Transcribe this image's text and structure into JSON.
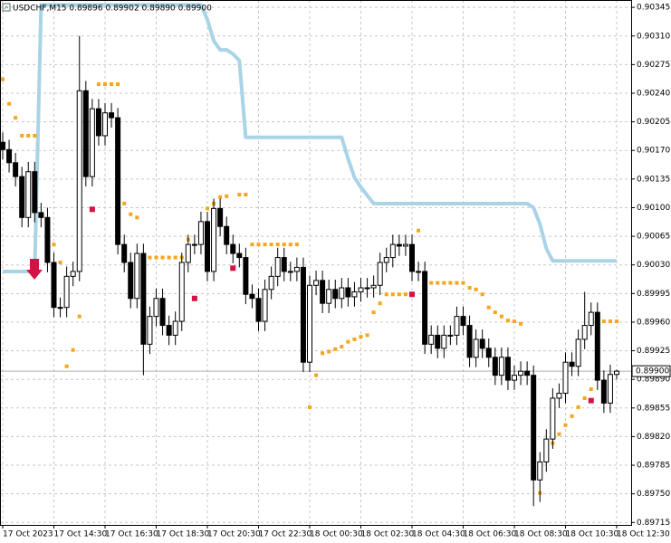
{
  "chart_data": {
    "type": "candlestick",
    "title": "USDCHF,M15  0.89896 0.89902 0.89890 0.89900",
    "categories": [
      "17 Oct 2023",
      null,
      null,
      null,
      null,
      null,
      null,
      null,
      "17 Oct 14:30",
      null,
      null,
      null,
      null,
      null,
      null,
      null,
      "17 Oct 16:30",
      null,
      null,
      null,
      null,
      null,
      null,
      null,
      "17 Oct 18:30",
      null,
      null,
      null,
      null,
      null,
      null,
      null,
      "17 Oct 20:30",
      null,
      null,
      null,
      null,
      null,
      null,
      null,
      "17 Oct 22:30",
      null,
      null,
      null,
      null,
      null,
      null,
      null,
      "18 Oct 00:30",
      null,
      null,
      null,
      null,
      null,
      null,
      null,
      "18 Oct 02:30",
      null,
      null,
      null,
      null,
      null,
      null,
      null,
      "18 Oct 04:30",
      null,
      null,
      null,
      null,
      null,
      null,
      null,
      "18 Oct 06:30",
      null,
      null,
      null,
      null,
      null,
      null,
      null,
      "18 Oct 08:30",
      null,
      null,
      null,
      null,
      null,
      null,
      null,
      "18 Oct 10:30",
      null,
      null,
      null,
      null,
      null,
      null,
      null,
      "18 Oct 12:30"
    ],
    "open": [
      0.9018,
      0.90171,
      0.90155,
      0.90138,
      0.90088,
      0.90144,
      0.90094,
      0.90088,
      0.90033,
      0.89978,
      0.89978,
      0.90016,
      0.90022,
      0.90243,
      0.90138,
      0.90221,
      0.90188,
      0.90216,
      0.9021,
      0.90055,
      0.90033,
      0.89989,
      0.90044,
      0.89933,
      0.89967,
      0.89989,
      0.89956,
      0.89944,
      0.89961,
      0.90033,
      0.90055,
      0.90055,
      0.90083,
      0.90022,
      0.90099,
      0.90077,
      0.90055,
      0.90044,
      0.90039,
      0.89994,
      0.89989,
      0.89961,
      0.9,
      0.90016,
      0.90039,
      0.90022,
      0.90022,
      0.90027,
      0.89911,
      0.90005,
      0.90011,
      0.89983,
      0.9,
      0.89989,
      0.90002,
      0.89991,
      0.89997,
      0.90002,
      0.90002,
      0.90005,
      0.90033,
      0.90039,
      0.90055,
      0.90053,
      0.90055,
      0.90022,
      0.90022,
      0.89933,
      0.89944,
      0.89928,
      0.89944,
      0.89944,
      0.89967,
      0.89956,
      0.89917,
      0.89939,
      0.89928,
      0.89917,
      0.89895,
      0.89917,
      0.89889,
      0.89895,
      0.899,
      0.89895,
      0.89767,
      0.89789,
      0.89817,
      0.89867,
      0.89873,
      0.89911,
      0.89906,
      0.89939,
      0.89956,
      0.89972,
      0.89889,
      0.89861,
      0.89896
    ],
    "high": [
      0.90192,
      0.90183,
      0.90167,
      0.9015,
      0.90156,
      0.90156,
      0.90106,
      0.901,
      0.90045,
      0.8999,
      0.90028,
      0.90034,
      0.9031,
      0.90255,
      0.90233,
      0.90233,
      0.90228,
      0.90228,
      0.90222,
      0.90067,
      0.90045,
      0.90056,
      0.90056,
      0.89979,
      0.90001,
      0.90001,
      0.89968,
      0.89973,
      0.90045,
      0.90067,
      0.90067,
      0.90095,
      0.90095,
      0.90111,
      0.90111,
      0.90089,
      0.90067,
      0.90056,
      0.90051,
      0.90006,
      0.90001,
      0.90012,
      0.90028,
      0.90051,
      0.90051,
      0.90034,
      0.90039,
      0.90039,
      0.90017,
      0.90023,
      0.90023,
      0.90012,
      0.90012,
      0.90014,
      0.90014,
      0.90009,
      0.90014,
      0.90014,
      0.90017,
      0.90045,
      0.90051,
      0.90067,
      0.90067,
      0.90067,
      0.90067,
      0.90034,
      0.90034,
      0.89956,
      0.89956,
      0.89956,
      0.89956,
      0.89979,
      0.89979,
      0.89968,
      0.89951,
      0.89951,
      0.8994,
      0.89929,
      0.89929,
      0.89929,
      0.89907,
      0.89912,
      0.89912,
      0.89907,
      0.89801,
      0.89829,
      0.89879,
      0.89885,
      0.89923,
      0.89923,
      0.89951,
      0.89997,
      0.89984,
      0.89984,
      0.89901,
      0.89908,
      0.89902
    ],
    "low": [
      0.90159,
      0.90143,
      0.90126,
      0.90076,
      0.90076,
      0.90082,
      0.90076,
      0.90021,
      0.89966,
      0.89966,
      0.89966,
      0.90004,
      0.9001,
      0.90126,
      0.90126,
      0.90176,
      0.90176,
      0.90198,
      0.90043,
      0.90021,
      0.89977,
      0.89977,
      0.89895,
      0.89921,
      0.89955,
      0.89944,
      0.89932,
      0.89932,
      0.89949,
      0.90021,
      0.90043,
      0.90043,
      0.9001,
      0.9001,
      0.90065,
      0.90043,
      0.90032,
      0.90027,
      0.89982,
      0.89977,
      0.89949,
      0.89949,
      0.89988,
      0.90004,
      0.9001,
      0.9001,
      0.9001,
      0.89899,
      0.89899,
      0.89993,
      0.89971,
      0.89971,
      0.89977,
      0.89977,
      0.89979,
      0.89979,
      0.89985,
      0.8999,
      0.8999,
      0.89993,
      0.90021,
      0.90027,
      0.90041,
      0.90041,
      0.9001,
      0.9001,
      0.89921,
      0.89921,
      0.89916,
      0.89916,
      0.89932,
      0.89932,
      0.89944,
      0.89905,
      0.89905,
      0.89916,
      0.89905,
      0.89883,
      0.89883,
      0.89877,
      0.89877,
      0.89883,
      0.89883,
      0.89735,
      0.8974,
      0.89777,
      0.89805,
      0.89855,
      0.89861,
      0.89894,
      0.89894,
      0.89927,
      0.89944,
      0.89877,
      0.89849,
      0.89849,
      0.8989
    ],
    "close": [
      0.90171,
      0.90155,
      0.90138,
      0.90088,
      0.90144,
      0.90094,
      0.90088,
      0.90033,
      0.89978,
      0.89978,
      0.90016,
      0.90022,
      0.90243,
      0.90138,
      0.90221,
      0.90188,
      0.90216,
      0.9021,
      0.90055,
      0.90033,
      0.89989,
      0.90044,
      0.89933,
      0.89967,
      0.89989,
      0.89956,
      0.89944,
      0.89961,
      0.90033,
      0.90055,
      0.90055,
      0.90083,
      0.90022,
      0.90099,
      0.90077,
      0.90055,
      0.90044,
      0.90039,
      0.89994,
      0.89989,
      0.89961,
      0.9,
      0.90016,
      0.90039,
      0.90022,
      0.90022,
      0.90027,
      0.89911,
      0.90005,
      0.90011,
      0.89983,
      0.9,
      0.89989,
      0.90002,
      0.89991,
      0.89997,
      0.90002,
      0.90002,
      0.90005,
      0.90033,
      0.90039,
      0.90055,
      0.90053,
      0.90055,
      0.90022,
      0.90022,
      0.89933,
      0.89944,
      0.89928,
      0.89944,
      0.89944,
      0.89967,
      0.89956,
      0.89917,
      0.89939,
      0.89928,
      0.89917,
      0.89895,
      0.89917,
      0.89889,
      0.89895,
      0.899,
      0.89895,
      0.89767,
      0.89789,
      0.89817,
      0.89867,
      0.89873,
      0.89911,
      0.89906,
      0.89939,
      0.89956,
      0.89972,
      0.89889,
      0.89861,
      0.89896,
      0.899
    ],
    "line_values": [
      0.90022,
      0.90022,
      0.90022,
      0.90022,
      0.90022,
      0.90022,
      0.90348,
      0.90348,
      0.90348,
      0.90348,
      0.90348,
      0.90348,
      0.90348,
      0.90348,
      0.90348,
      0.90348,
      0.90348,
      0.90348,
      0.90348,
      0.90348,
      0.90348,
      0.90348,
      0.90348,
      0.90348,
      0.90348,
      0.90348,
      0.90348,
      0.90348,
      0.90348,
      0.90348,
      0.90348,
      0.90348,
      0.9033,
      0.90304,
      0.90293,
      0.90293,
      0.90288,
      0.9028,
      0.90186,
      0.90186,
      0.90186,
      0.90186,
      0.90186,
      0.90186,
      0.90186,
      0.90186,
      0.90186,
      0.90186,
      0.90186,
      0.90186,
      0.90186,
      0.90186,
      0.90186,
      0.90186,
      0.9016,
      0.90137,
      0.90125,
      0.90115,
      0.90105,
      0.90105,
      0.90105,
      0.90105,
      0.90105,
      0.90105,
      0.90105,
      0.90105,
      0.90105,
      0.90105,
      0.90105,
      0.90105,
      0.90105,
      0.90105,
      0.90105,
      0.90105,
      0.90105,
      0.90105,
      0.90105,
      0.90105,
      0.90105,
      0.90105,
      0.90105,
      0.90105,
      0.90105,
      0.901,
      0.9008,
      0.9005,
      0.90035,
      0.90035,
      0.90035,
      0.90035,
      0.90035,
      0.90035,
      0.90035,
      0.90035,
      0.90035,
      0.90035,
      0.90035
    ],
    "line_color": "#a8d4e6",
    "sar_values": [
      0.90257,
      0.90227,
      0.9021,
      0.90188,
      0.90188,
      0.90188,
      null,
      0.90072,
      0.90055,
      0.90033,
      0.89906,
      0.89926,
      0.89967,
      null,
      null,
      0.90251,
      0.90251,
      0.90251,
      0.90251,
      0.90105,
      0.90092,
      0.90088,
      0.90039,
      0.90039,
      0.90039,
      0.90039,
      0.90039,
      0.90039,
      0.90039,
      0.90061,
      null,
      0.90077,
      0.90099,
      0.90105,
      0.90113,
      0.90114,
      null,
      0.90116,
      0.90116,
      0.90055,
      0.90055,
      0.90055,
      0.90055,
      0.90055,
      0.90055,
      0.90055,
      0.90055,
      null,
      0.89856,
      0.89895,
      0.89922,
      0.89924,
      0.89927,
      0.8993,
      0.89936,
      0.89939,
      0.89942,
      0.89944,
      0.89972,
      0.89983,
      0.89994,
      0.89994,
      0.89994,
      0.89994,
      null,
      0.90072,
      0.90008,
      0.90008,
      0.90008,
      0.90008,
      0.90008,
      0.90008,
      0.90008,
      0.90002,
      0.9,
      0.89994,
      0.89978,
      0.89972,
      0.89967,
      0.89962,
      0.89961,
      0.89958,
      null,
      null,
      0.89751,
      0.898,
      0.89812,
      0.89823,
      0.89834,
      0.89845,
      0.89856,
      0.89867,
      0.89878,
      0.89961,
      0.89961,
      0.89961,
      0.89961
    ],
    "sar_color": "#f7a51c",
    "signal_values": [
      null,
      null,
      null,
      null,
      null,
      null,
      null,
      null,
      null,
      null,
      null,
      null,
      null,
      null,
      0.90098,
      null,
      null,
      null,
      null,
      null,
      null,
      null,
      null,
      null,
      null,
      null,
      null,
      null,
      null,
      null,
      0.89989,
      null,
      null,
      null,
      null,
      null,
      0.90026,
      null,
      null,
      null,
      null,
      null,
      null,
      null,
      null,
      null,
      null,
      null,
      null,
      null,
      null,
      null,
      null,
      null,
      null,
      null,
      null,
      null,
      null,
      null,
      null,
      null,
      null,
      null,
      0.89994,
      null,
      null,
      null,
      null,
      null,
      null,
      null,
      null,
      null,
      null,
      null,
      null,
      null,
      null,
      null,
      null,
      null,
      null,
      null,
      null,
      null,
      null,
      null,
      null,
      null,
      null,
      null,
      0.89864,
      null,
      null,
      null,
      null
    ],
    "signal_color": "#d41245",
    "current_price": {
      "value": 0.899,
      "label": "0.89900"
    },
    "ylim": [
      0.89712,
      0.90354
    ],
    "yticks": [
      0.90345,
      {
        "value": 0.9031,
        "label": "0.90310"
      },
      0.90275,
      {
        "value": 0.9024,
        "label": "0.90240"
      },
      0.90205,
      {
        "value": 0.9017,
        "label": "0.90170"
      },
      0.90135,
      {
        "value": 0.901,
        "label": "0.90100"
      },
      0.90065,
      {
        "value": 0.9003,
        "label": "0.90030"
      },
      0.89995,
      {
        "value": 0.8996,
        "label": "0.89960"
      },
      0.89925,
      {
        "value": 0.8989,
        "label": "0.89890"
      },
      0.89855,
      {
        "value": 0.8982,
        "label": "0.89820"
      },
      0.89785,
      {
        "value": 0.8975,
        "label": "0.89750"
      },
      0.89715
    ],
    "grid": true
  }
}
